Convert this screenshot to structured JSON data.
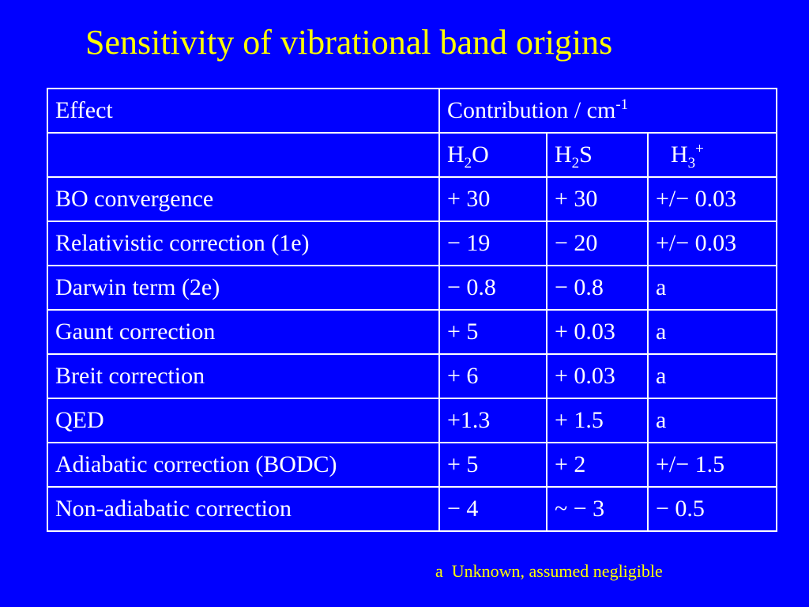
{
  "title": "Sensitivity of vibrational band origins",
  "table": {
    "header": {
      "effect": "Effect",
      "contribution": "Contribution / cm",
      "contribution_sup": "-1"
    },
    "molecules": {
      "m1_base": "H",
      "m1_sub": "2",
      "m1_tail": "O",
      "m2_base": "H",
      "m2_sub": "2",
      "m2_tail": "S",
      "m3_base": "H",
      "m3_sub": "3",
      "m3_sup": "+"
    },
    "rows": [
      {
        "effect": "BO convergence",
        "h2o": "+ 30",
        "h2s": "+ 30",
        "h3": "+/− 0.03"
      },
      {
        "effect": "Relativistic correction (1e)",
        "h2o": "− 19",
        "h2s": "− 20",
        "h3": "+/− 0.03"
      },
      {
        "effect": "Darwin term (2e)",
        "h2o": "− 0.8",
        "h2s": "− 0.8",
        "h3": "a"
      },
      {
        "effect": "Gaunt correction",
        "h2o": "+ 5",
        "h2s": "+ 0.03",
        "h3": "a"
      },
      {
        "effect": "Breit correction",
        "h2o": "+ 6",
        "h2s": "+ 0.03",
        "h3": "a"
      },
      {
        "effect": "QED",
        "h2o": "+1.3",
        "h2s": "+ 1.5",
        "h3": "a"
      },
      {
        "effect": "Adiabatic correction (BODC)",
        "h2o": "+ 5",
        "h2s": "+ 2",
        "h3": "+/− 1.5"
      },
      {
        "effect": "Non-adiabatic correction",
        "h2o": "− 4",
        "h2s": "~ − 3",
        "h3": "− 0.5"
      }
    ]
  },
  "footnote": {
    "marker": "a",
    "text": "Unknown, assumed negligible"
  },
  "colors": {
    "background": "#0000ff",
    "title": "#ffff00",
    "text": "#ffffff",
    "footnote": "#ffff00"
  }
}
